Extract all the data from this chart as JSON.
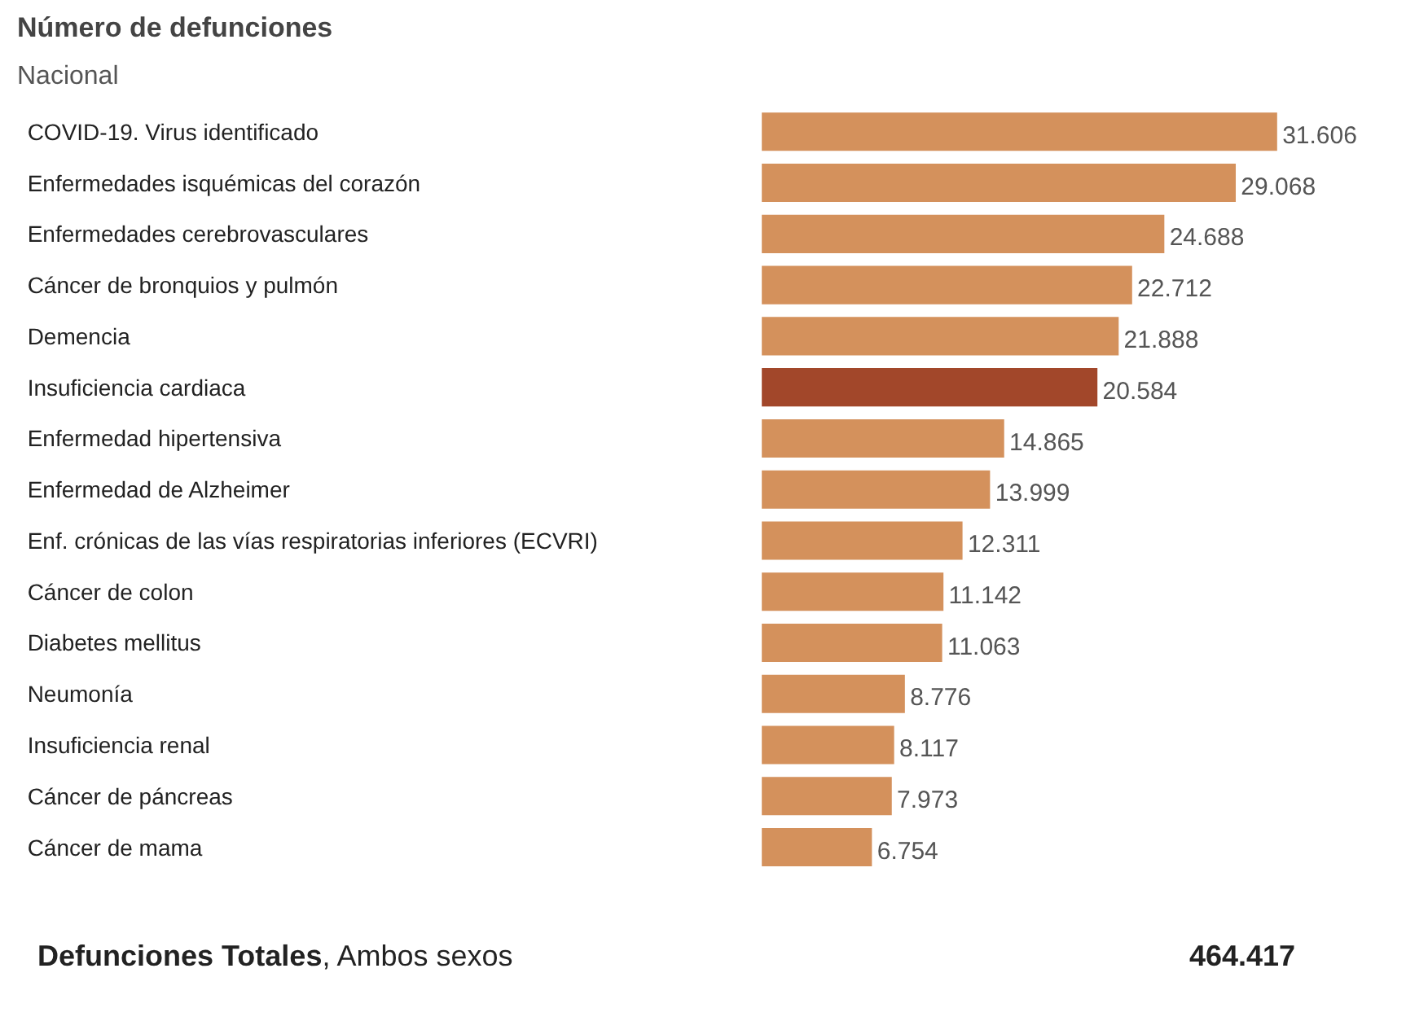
{
  "chart_data": {
    "type": "bar",
    "orientation": "horizontal",
    "title": "Número de defunciones",
    "subtitle": "Nacional",
    "categories": [
      "COVID-19. Virus identificado",
      "Enfermedades isquémicas del corazón",
      "Enfermedades cerebrovasculares",
      "Cáncer de bronquios y pulmón",
      "Demencia",
      "Insuficiencia cardiaca",
      "Enfermedad hipertensiva",
      "Enfermedad de Alzheimer",
      "Enf. crónicas de las vías respiratorias inferiores (ECVRI)",
      "Cáncer de colon",
      "Diabetes mellitus",
      "Neumonía",
      "Insuficiencia renal",
      "Cáncer de páncreas",
      "Cáncer de mama"
    ],
    "values": [
      31606,
      29068,
      24688,
      22712,
      21888,
      20584,
      14865,
      13999,
      12311,
      11142,
      11063,
      8776,
      8117,
      7973,
      6754
    ],
    "value_labels": [
      "31.606",
      "29.068",
      "24.688",
      "22.712",
      "21.888",
      "20.584",
      "14.865",
      "13.999",
      "12.311",
      "11.142",
      "11.063",
      "8.776",
      "8.117",
      "7.973",
      "6.754"
    ],
    "colors": [
      "#d4915c",
      "#d4915c",
      "#d4915c",
      "#d4915c",
      "#d4915c",
      "#a2472a",
      "#d4915c",
      "#d4915c",
      "#d4915c",
      "#d4915c",
      "#d4915c",
      "#d4915c",
      "#d4915c",
      "#d4915c",
      "#d4915c"
    ],
    "grid": false,
    "annotations": [
      "Defunciones Totales, Ambos sexos",
      "464.417"
    ]
  }
}
